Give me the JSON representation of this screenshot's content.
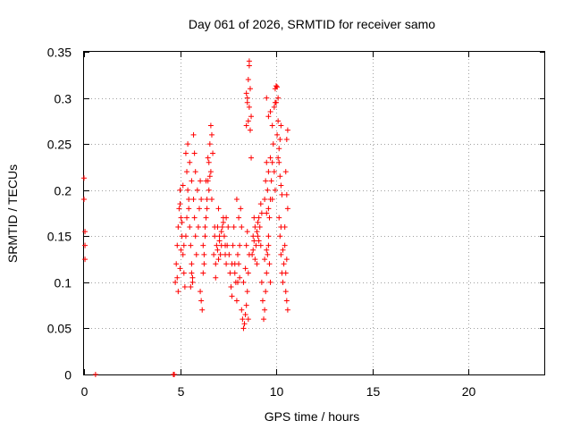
{
  "chart_data": {
    "type": "scatter",
    "title": "Day 061 of 2026, SRMTID for receiver samo",
    "xlabel": "GPS time / hours",
    "ylabel": "SRMTID / TECUs",
    "xlim": [
      0,
      24
    ],
    "ylim": [
      0,
      0.35
    ],
    "x_ticks": [
      0,
      5,
      10,
      15,
      20
    ],
    "x_tick_labels": [
      "0",
      "5",
      "10",
      "15",
      "20"
    ],
    "y_ticks": [
      0,
      0.05,
      0.1,
      0.15,
      0.2,
      0.25,
      0.3,
      0.35
    ],
    "y_tick_labels": [
      "0",
      "0.05",
      "0.1",
      "0.15",
      "0.2",
      "0.25",
      "0.3",
      "0.35"
    ],
    "grid": true,
    "marker": "+",
    "color": "#ff0000",
    "series": [
      {
        "points": [
          [
            0.0,
            0.213
          ],
          [
            0.0,
            0.19
          ],
          [
            0.05,
            0.155
          ],
          [
            0.05,
            0.14
          ],
          [
            0.05,
            0.125
          ],
          [
            0.6,
            0.0
          ],
          [
            4.65,
            0.0
          ],
          [
            4.7,
            0.0
          ],
          [
            4.75,
            0.1
          ],
          [
            4.8,
            0.12
          ],
          [
            4.85,
            0.14
          ],
          [
            4.9,
            0.16
          ],
          [
            4.95,
            0.18
          ],
          [
            5.0,
            0.2
          ],
          [
            5.05,
            0.17
          ],
          [
            5.1,
            0.15
          ],
          [
            5.15,
            0.13
          ],
          [
            5.2,
            0.11
          ],
          [
            5.25,
            0.095
          ],
          [
            4.9,
            0.09
          ],
          [
            5.0,
            0.115
          ],
          [
            5.05,
            0.135
          ],
          [
            5.1,
            0.165
          ],
          [
            5.15,
            0.205
          ],
          [
            5.0,
            0.185
          ],
          [
            4.85,
            0.105
          ],
          [
            5.2,
            0.14
          ],
          [
            5.3,
            0.24
          ],
          [
            5.35,
            0.22
          ],
          [
            5.4,
            0.2
          ],
          [
            5.45,
            0.18
          ],
          [
            5.5,
            0.16
          ],
          [
            5.55,
            0.14
          ],
          [
            5.6,
            0.12
          ],
          [
            5.65,
            0.1
          ],
          [
            5.4,
            0.25
          ],
          [
            5.5,
            0.23
          ],
          [
            5.6,
            0.21
          ],
          [
            5.7,
            0.19
          ],
          [
            5.75,
            0.17
          ],
          [
            5.8,
            0.15
          ],
          [
            5.85,
            0.13
          ],
          [
            5.7,
            0.26
          ],
          [
            5.75,
            0.24
          ],
          [
            5.8,
            0.22
          ],
          [
            5.9,
            0.2
          ],
          [
            6.0,
            0.18
          ],
          [
            5.95,
            0.16
          ],
          [
            6.05,
            0.21
          ],
          [
            6.1,
            0.19
          ],
          [
            5.6,
            0.11
          ],
          [
            5.55,
            0.095
          ],
          [
            5.65,
            0.105
          ],
          [
            5.3,
            0.15
          ],
          [
            5.35,
            0.17
          ],
          [
            5.45,
            0.19
          ],
          [
            6.05,
            0.09
          ],
          [
            6.1,
            0.08
          ],
          [
            6.15,
            0.07
          ],
          [
            6.2,
            0.11
          ],
          [
            6.25,
            0.13
          ],
          [
            6.3,
            0.15
          ],
          [
            6.35,
            0.17
          ],
          [
            6.4,
            0.19
          ],
          [
            6.45,
            0.21
          ],
          [
            6.5,
            0.23
          ],
          [
            6.55,
            0.25
          ],
          [
            6.6,
            0.27
          ],
          [
            6.65,
            0.26
          ],
          [
            6.7,
            0.24
          ],
          [
            6.6,
            0.22
          ],
          [
            6.5,
            0.2
          ],
          [
            6.4,
            0.18
          ],
          [
            6.3,
            0.16
          ],
          [
            6.2,
            0.14
          ],
          [
            6.25,
            0.12
          ],
          [
            6.35,
            0.21
          ],
          [
            6.45,
            0.235
          ],
          [
            6.55,
            0.215
          ],
          [
            6.65,
            0.19
          ],
          [
            6.75,
            0.13
          ],
          [
            6.8,
            0.15
          ],
          [
            6.85,
            0.12
          ],
          [
            6.9,
            0.14
          ],
          [
            6.95,
            0.16
          ],
          [
            7.0,
            0.18
          ],
          [
            7.05,
            0.15
          ],
          [
            7.1,
            0.13
          ],
          [
            7.15,
            0.14
          ],
          [
            7.2,
            0.16
          ],
          [
            7.25,
            0.17
          ],
          [
            7.3,
            0.15
          ],
          [
            7.35,
            0.13
          ],
          [
            7.4,
            0.12
          ],
          [
            7.45,
            0.14
          ],
          [
            7.5,
            0.16
          ],
          [
            6.85,
            0.105
          ],
          [
            6.95,
            0.135
          ],
          [
            7.05,
            0.145
          ],
          [
            7.15,
            0.155
          ],
          [
            7.25,
            0.165
          ],
          [
            7.35,
            0.14
          ],
          [
            6.8,
            0.16
          ],
          [
            7.0,
            0.125
          ],
          [
            7.4,
            0.17
          ],
          [
            7.55,
            0.13
          ],
          [
            7.6,
            0.11
          ],
          [
            7.65,
            0.095
          ],
          [
            7.7,
            0.12
          ],
          [
            7.75,
            0.14
          ],
          [
            7.8,
            0.16
          ],
          [
            7.85,
            0.12
          ],
          [
            7.9,
            0.1
          ],
          [
            7.95,
            0.08
          ],
          [
            8.0,
            0.1
          ],
          [
            8.05,
            0.12
          ],
          [
            8.1,
            0.14
          ],
          [
            8.15,
            0.18
          ],
          [
            8.2,
            0.16
          ],
          [
            7.7,
            0.085
          ],
          [
            7.85,
            0.11
          ],
          [
            8.0,
            0.13
          ],
          [
            8.1,
            0.105
          ],
          [
            7.95,
            0.19
          ],
          [
            8.05,
            0.17
          ],
          [
            8.2,
            0.07
          ],
          [
            8.25,
            0.06
          ],
          [
            8.3,
            0.05
          ],
          [
            8.35,
            0.055
          ],
          [
            8.4,
            0.065
          ],
          [
            8.45,
            0.075
          ],
          [
            8.5,
            0.09
          ],
          [
            8.55,
            0.11
          ],
          [
            8.6,
            0.13
          ],
          [
            8.45,
            0.14
          ],
          [
            8.55,
            0.06
          ],
          [
            8.3,
            0.1
          ],
          [
            8.4,
            0.115
          ],
          [
            8.5,
            0.155
          ],
          [
            8.5,
            0.3
          ],
          [
            8.55,
            0.32
          ],
          [
            8.6,
            0.34
          ],
          [
            8.6,
            0.335
          ],
          [
            8.65,
            0.31
          ],
          [
            8.6,
            0.29
          ],
          [
            8.55,
            0.275
          ],
          [
            8.65,
            0.265
          ],
          [
            8.7,
            0.28
          ],
          [
            8.5,
            0.295
          ],
          [
            8.45,
            0.305
          ],
          [
            8.7,
            0.235
          ],
          [
            8.45,
            0.27
          ],
          [
            8.75,
            0.13
          ],
          [
            8.8,
            0.15
          ],
          [
            8.85,
            0.17
          ],
          [
            8.9,
            0.16
          ],
          [
            8.95,
            0.14
          ],
          [
            9.0,
            0.12
          ],
          [
            9.05,
            0.15
          ],
          [
            9.1,
            0.17
          ],
          [
            9.15,
            0.16
          ],
          [
            9.2,
            0.14
          ],
          [
            8.9,
            0.125
          ],
          [
            9.0,
            0.155
          ],
          [
            9.1,
            0.145
          ],
          [
            8.8,
            0.135
          ],
          [
            9.2,
            0.185
          ],
          [
            9.25,
            0.175
          ],
          [
            8.85,
            0.145
          ],
          [
            9.05,
            0.165
          ],
          [
            9.25,
            0.1
          ],
          [
            9.3,
            0.08
          ],
          [
            9.35,
            0.06
          ],
          [
            9.4,
            0.07
          ],
          [
            9.45,
            0.09
          ],
          [
            9.5,
            0.11
          ],
          [
            9.55,
            0.13
          ],
          [
            9.6,
            0.15
          ],
          [
            9.65,
            0.12
          ],
          [
            9.7,
            0.1
          ],
          [
            9.4,
            0.125
          ],
          [
            9.5,
            0.135
          ],
          [
            9.6,
            0.14
          ],
          [
            9.4,
            0.19
          ],
          [
            9.45,
            0.21
          ],
          [
            9.5,
            0.23
          ],
          [
            9.55,
            0.2
          ],
          [
            9.6,
            0.18
          ],
          [
            9.65,
            0.17
          ],
          [
            9.7,
            0.19
          ],
          [
            9.75,
            0.21
          ],
          [
            9.8,
            0.23
          ],
          [
            9.85,
            0.25
          ],
          [
            9.5,
            0.175
          ],
          [
            9.6,
            0.22
          ],
          [
            9.7,
            0.235
          ],
          [
            9.9,
            0.22
          ],
          [
            9.95,
            0.2
          ],
          [
            9.8,
            0.19
          ],
          [
            9.5,
            0.3
          ],
          [
            9.6,
            0.28
          ],
          [
            9.7,
            0.285
          ],
          [
            9.8,
            0.27
          ],
          [
            9.9,
            0.29
          ],
          [
            9.95,
            0.31
          ],
          [
            10.0,
            0.313
          ],
          [
            10.05,
            0.312
          ],
          [
            10.1,
            0.3
          ],
          [
            9.95,
            0.295
          ],
          [
            10.0,
            0.295
          ],
          [
            10.1,
            0.275
          ],
          [
            10.05,
            0.26
          ],
          [
            10.15,
            0.245
          ],
          [
            10.2,
            0.255
          ],
          [
            10.25,
            0.27
          ],
          [
            10.1,
            0.235
          ],
          [
            10.15,
            0.23
          ],
          [
            10.2,
            0.215
          ],
          [
            10.25,
            0.205
          ],
          [
            10.3,
            0.195
          ],
          [
            10.15,
            0.17
          ],
          [
            10.2,
            0.15
          ],
          [
            10.25,
            0.13
          ],
          [
            10.3,
            0.11
          ],
          [
            10.35,
            0.1
          ],
          [
            10.4,
            0.12
          ],
          [
            10.45,
            0.14
          ],
          [
            10.5,
            0.09
          ],
          [
            10.55,
            0.08
          ],
          [
            10.6,
            0.07
          ],
          [
            10.5,
            0.11
          ],
          [
            10.45,
            0.16
          ],
          [
            10.35,
            0.135
          ],
          [
            10.55,
            0.125
          ],
          [
            10.25,
            0.16
          ],
          [
            10.55,
            0.255
          ],
          [
            10.6,
            0.265
          ],
          [
            10.5,
            0.22
          ],
          [
            10.6,
            0.18
          ],
          [
            10.55,
            0.195
          ]
        ]
      }
    ]
  }
}
